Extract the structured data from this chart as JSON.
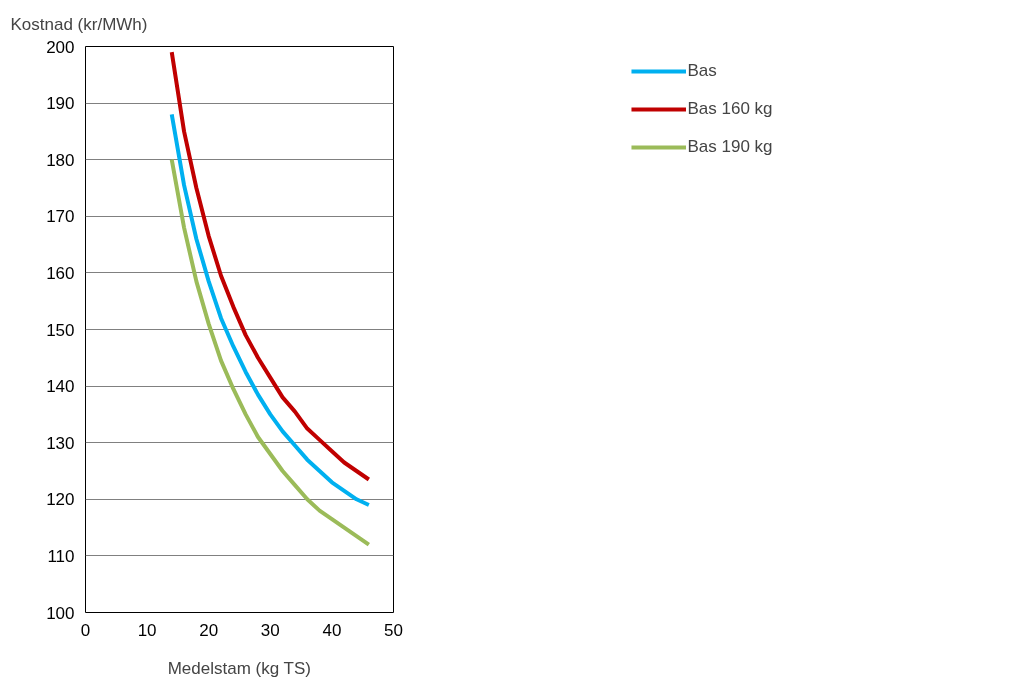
{
  "chart_data": {
    "type": "line",
    "ylabel": "Kostnad (kr/MWh)",
    "xlabel": "Medelstam (kg TS)",
    "x": [
      14,
      16,
      18,
      20,
      22,
      24,
      26,
      28,
      30,
      32,
      34,
      36,
      38,
      40,
      42,
      44,
      46
    ],
    "series": [
      {
        "name": "Bas",
        "color": "#00b0f0",
        "values": [
          188,
          175.5,
          166,
          158.5,
          152,
          147,
          142.5,
          138.5,
          135,
          132,
          129.5,
          127,
          125,
          123,
          121.5,
          120,
          119
        ]
      },
      {
        "name": "Bas 160 kg",
        "color": "#c00000",
        "values": [
          199,
          185,
          175,
          166.5,
          159.5,
          154,
          149,
          145,
          141.5,
          138,
          135.5,
          132.5,
          130.5,
          128.5,
          126.5,
          125,
          123.5
        ]
      },
      {
        "name": "Bas 190 kg",
        "color": "#9bbb59",
        "values": [
          180,
          168,
          158.5,
          151,
          144.5,
          139.5,
          135,
          131,
          128,
          125,
          122.5,
          120,
          118,
          116.5,
          115,
          113.5,
          112
        ]
      }
    ],
    "xlim": [
      0,
      50
    ],
    "xticks": [
      0,
      10,
      20,
      30,
      40,
      50
    ],
    "ylim": [
      100,
      200
    ],
    "yticks": [
      100,
      110,
      120,
      130,
      140,
      150,
      160,
      170,
      180,
      190,
      200
    ],
    "grid": "y",
    "legend": "right",
    "marker": "none",
    "line_style": "solid"
  }
}
